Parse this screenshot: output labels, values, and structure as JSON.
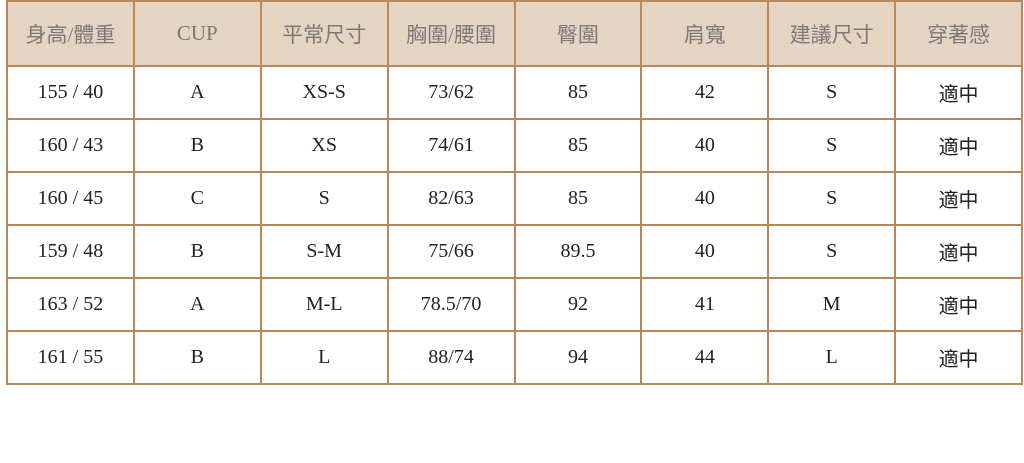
{
  "headers": [
    "身高/體重",
    "CUP",
    "平常尺寸",
    "胸圍/腰圍",
    "臀圍",
    "肩寬",
    "建議尺寸",
    "穿著感"
  ],
  "rows": [
    [
      "155 / 40",
      "A",
      "XS-S",
      "73/62",
      "85",
      "42",
      "S",
      "適中"
    ],
    [
      "160 / 43",
      "B",
      "XS",
      "74/61",
      "85",
      "40",
      "S",
      "適中"
    ],
    [
      "160 / 45",
      "C",
      "S",
      "82/63",
      "85",
      "40",
      "S",
      "適中"
    ],
    [
      "159 / 48",
      "B",
      "S-M",
      "75/66",
      "89.5",
      "40",
      "S",
      "適中"
    ],
    [
      "163 / 52",
      "A",
      "M-L",
      "78.5/70",
      "92",
      "41",
      "M",
      "適中"
    ],
    [
      "161 / 55",
      "B",
      "L",
      "88/74",
      "94",
      "44",
      "L",
      "適中"
    ]
  ],
  "colors": {
    "header_bg": "#e6d4c3",
    "border": "#b8885a"
  }
}
